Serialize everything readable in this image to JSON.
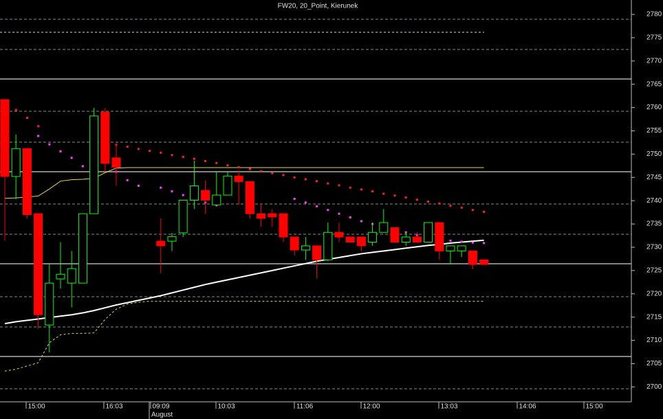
{
  "chart_data": {
    "type": "candlestick",
    "title": "FW20, 20_Point, Kierunek",
    "categories": [
      null,
      null,
      null,
      null,
      null,
      null,
      null,
      null,
      null,
      null,
      null,
      null,
      null,
      null,
      null,
      null,
      null,
      null,
      null,
      null,
      null,
      null,
      null,
      null,
      null,
      null,
      null,
      null,
      null,
      null,
      null,
      null,
      null,
      null,
      null,
      null,
      null,
      null,
      null,
      null,
      null,
      null,
      null,
      null
    ],
    "up_color": "#00ff00",
    "down_color": "#ff0000",
    "open": [
      2761.7,
      2745.2,
      2751.2,
      2737.2,
      2713.3,
      2723.2,
      2722.3,
      2722.3,
      2737.2,
      2759.0,
      2749.2,
      null,
      null,
      null,
      2731.3,
      2731.3,
      2733.1,
      2740.1,
      2742.2,
      2739.1,
      2741.2,
      2745.3,
      2744.1,
      2737.2,
      2737.2,
      2737.2,
      2732.2,
      2729.4,
      2730.3,
      2727.3,
      2733.2,
      2732.2,
      2732.2,
      2731.1,
      2733.2,
      2734.2,
      2731.1,
      2732.2,
      2731.1,
      2735.3,
      2729.2,
      2729.2,
      2729.2,
      2727.3
    ],
    "high": [
      2761.7,
      2754.2,
      2751.2,
      2737.2,
      2726.4,
      2731.1,
      2729.2,
      2737.2,
      2759.9,
      2759.9,
      2752.1,
      null,
      null,
      null,
      2736.2,
      2733.1,
      2740.1,
      2748.6,
      2744.3,
      2746.3,
      2746.2,
      2746.5,
      2744.1,
      2739.3,
      2738.2,
      2737.2,
      2732.2,
      2732.2,
      2730.3,
      2735.3,
      2735.3,
      2732.2,
      2732.2,
      2735.3,
      2738.2,
      2734.2,
      2733.2,
      2733.2,
      2735.3,
      2735.3,
      2730.3,
      2730.3,
      2729.2,
      2727.3
    ],
    "low": [
      2731.4,
      2740.3,
      2736.2,
      2712.5,
      2707.4,
      2721.1,
      2717.1,
      2722.3,
      2737.2,
      2746.2,
      2743.2,
      null,
      null,
      null,
      2724.4,
      2729.2,
      2732.2,
      2738.2,
      2737.2,
      2739.0,
      2741.2,
      2739.1,
      2736.2,
      2734.4,
      2734.4,
      2731.1,
      2728.2,
      2727.3,
      2723.3,
      2727.0,
      2731.1,
      2731.1,
      2729.2,
      2730.3,
      2733.2,
      2731.1,
      2730.3,
      2731.1,
      2731.1,
      2727.3,
      2726.3,
      2727.9,
      2725.3,
      2726.3
    ],
    "close": [
      2745.2,
      2751.2,
      2737.0,
      2715.5,
      2722.3,
      2724.2,
      2725.4,
      2737.2,
      2758.2,
      2748.0,
      2747.2,
      null,
      null,
      null,
      2730.3,
      2732.3,
      2740.1,
      2743.2,
      2740.1,
      2741.2,
      2745.3,
      2744.1,
      2737.2,
      2736.2,
      2736.5,
      2732.2,
      2729.4,
      2730.3,
      2727.3,
      2733.2,
      2732.2,
      2731.1,
      2730.3,
      2733.2,
      2735.3,
      2731.1,
      2732.2,
      2731.1,
      2735.3,
      2729.2,
      2730.3,
      2730.3,
      2726.3,
      2726.3
    ],
    "indicators": [
      {
        "color": "#ffffff",
        "style": "line",
        "values": [
          2713.6,
          2714.0,
          2714.3,
          2714.6,
          2714.9,
          2715.2,
          2715.5,
          2715.9,
          2716.4,
          2717.0,
          2717.6,
          2718.1,
          2718.6,
          2719.1,
          2719.6,
          2720.2,
          2720.8,
          2721.4,
          2722.0,
          2722.5,
          2723.0,
          2723.5,
          2724.0,
          2724.5,
          2725.0,
          2725.5,
          2726.0,
          2726.5,
          2727.0,
          2727.4,
          2727.8,
          2728.2,
          2728.6,
          2728.9,
          2729.2,
          2729.5,
          2729.8,
          2730.1,
          2730.4,
          2730.6,
          2730.9,
          2731.1,
          2731.3,
          2731.5
        ]
      },
      {
        "color": "#e8d84a",
        "style": "line",
        "values": [
          2740.5,
          2740.6,
          2740.8,
          2741.0,
          2742.5,
          2744.2,
          2744.5,
          2744.6,
          2744.8,
          2746.0,
          2747.0,
          2747.1,
          2747.1,
          2747.1,
          2747.1,
          2747.1,
          2747.1,
          2747.1,
          2747.1,
          2747.1,
          2747.1,
          2747.1,
          2747.1,
          2747.1,
          2747.1,
          2747.1,
          2747.1,
          2747.1,
          2747.1,
          2747.1,
          2747.1,
          2747.1,
          2747.1,
          2747.1,
          2747.1,
          2747.1,
          2747.1,
          2747.1,
          2747.1,
          2747.1,
          2747.1,
          2747.1,
          2747.1,
          2747.1
        ]
      },
      {
        "color": "#e8d84a",
        "style": "dashed",
        "values": [
          2703.4,
          2703.8,
          2704.5,
          2705.2,
          2709.5,
          2711.2,
          2711.5,
          2711.5,
          2711.6,
          2714.5,
          2716.7,
          2717.8,
          2718.2,
          2718.4,
          2718.4,
          2718.4,
          2718.4,
          2718.4,
          2718.4,
          2718.4,
          2718.4,
          2718.4,
          2718.4,
          2718.4,
          2718.4,
          2718.4,
          2718.4,
          2718.4,
          2718.4,
          2718.4,
          2718.4,
          2718.4,
          2718.4,
          2718.4,
          2718.4,
          2718.4,
          2718.4,
          2718.4,
          2718.4,
          2718.4,
          2718.4,
          2718.4,
          2718.4,
          2718.4
        ]
      },
      {
        "color": "#ff2020",
        "style": "dots",
        "values": [
          2761.3,
          2759.5,
          2757.8,
          2756.0,
          null,
          null,
          null,
          null,
          null,
          null,
          2752.0,
          2751.6,
          2751.1,
          2750.7,
          2750.3,
          2749.8,
          2749.4,
          2749.0,
          2748.5,
          2748.1,
          2747.6,
          2747.2,
          2746.8,
          2746.3,
          2745.9,
          2745.5,
          2745.0,
          2744.6,
          2744.2,
          2743.7,
          2743.3,
          2742.8,
          2742.4,
          2742.0,
          2741.5,
          2741.1,
          2740.7,
          2740.2,
          2739.8,
          2739.4,
          2738.9,
          2738.5,
          2738.0,
          2737.6
        ]
      },
      {
        "color": "#ff40ff",
        "style": "dots",
        "values": [
          null,
          null,
          null,
          2753.9,
          2752.1,
          2750.6,
          2749.2,
          2747.4,
          2745.0,
          null,
          2746.2,
          2744.4,
          2743.2,
          null,
          2742.8,
          2742.0,
          2741.2,
          2740.4,
          2739.6,
          2739.0,
          null,
          null,
          null,
          null,
          null,
          null,
          2740.4,
          2739.6,
          2738.8,
          2738.0,
          2737.2,
          2736.4,
          2735.6,
          2735.0,
          2734.4,
          2733.8,
          2733.2,
          2732.6,
          2732.2,
          2731.8,
          2731.4,
          2731.2,
          2731.0,
          2730.9
        ]
      }
    ],
    "ylim": [
      2696.8,
      2783.1
    ],
    "yticks": [
      2700,
      2705,
      2710,
      2715,
      2720,
      2725,
      2730,
      2735,
      2740,
      2745,
      2750,
      2755,
      2760,
      2765,
      2770,
      2775,
      2780
    ],
    "time_labels": [
      "15:00",
      "16:03",
      "09:09",
      "10:03",
      "11:06",
      "12:00",
      "13:03",
      "14:06",
      "15:00"
    ],
    "date_label": "August"
  }
}
